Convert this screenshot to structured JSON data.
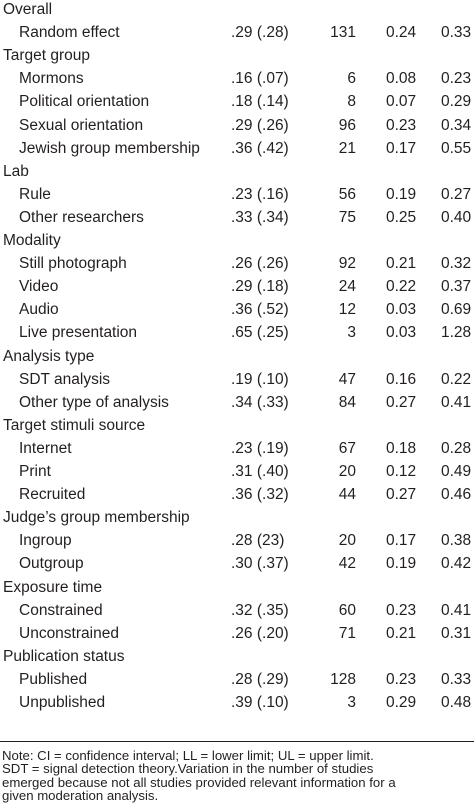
{
  "table": {
    "groups": [
      {
        "title": "Overall",
        "rows": [
          [
            "Random effect",
            ".29 (.28)",
            "131",
            "0.24",
            "0.33"
          ]
        ]
      },
      {
        "title": "Target group",
        "rows": [
          [
            "Mormons",
            ".16 (.07)",
            "6",
            "0.08",
            "0.23"
          ],
          [
            "Political orientation",
            ".18 (.14)",
            "8",
            "0.07",
            "0.29"
          ],
          [
            "Sexual orientation",
            ".29 (.26)",
            "96",
            "0.23",
            "0.34"
          ],
          [
            "Jewish group membership",
            ".36 (.42)",
            "21",
            "0.17",
            "0.55"
          ]
        ]
      },
      {
        "title": "Lab",
        "rows": [
          [
            "Rule",
            ".23 (.16)",
            "56",
            "0.19",
            "0.27"
          ],
          [
            "Other researchers",
            ".33 (.34)",
            "75",
            "0.25",
            "0.40"
          ]
        ]
      },
      {
        "title": "Modality",
        "rows": [
          [
            "Still photograph",
            ".26 (.26)",
            "92",
            "0.21",
            "0.32"
          ],
          [
            "Video",
            ".29 (.18)",
            "24",
            "0.22",
            "0.37"
          ],
          [
            "Audio",
            ".36 (.52)",
            "12",
            "0.03",
            "0.69"
          ],
          [
            "Live presentation",
            ".65 (.25)",
            "3",
            "0.03",
            "1.28"
          ]
        ]
      },
      {
        "title": "Analysis type",
        "rows": [
          [
            "SDT analysis",
            ".19 (.10)",
            "47",
            "0.16",
            "0.22"
          ],
          [
            "Other type of analysis",
            ".34 (.33)",
            "84",
            "0.27",
            "0.41"
          ]
        ]
      },
      {
        "title": "Target stimuli source",
        "rows": [
          [
            "Internet",
            ".23 (.19)",
            "67",
            "0.18",
            "0.28"
          ],
          [
            "Print",
            ".31 (.40)",
            "20",
            "0.12",
            "0.49"
          ],
          [
            "Recruited",
            ".36 (.32)",
            "44",
            "0.27",
            "0.46"
          ]
        ]
      },
      {
        "title": "Judge’s group membership",
        "rows": [
          [
            "Ingroup",
            ".28 (23)",
            "20",
            "0.17",
            "0.38"
          ],
          [
            "Outgroup",
            ".30 (.37)",
            "42",
            "0.19",
            "0.42"
          ]
        ]
      },
      {
        "title": "Exposure time",
        "rows": [
          [
            "Constrained",
            ".32 (.35)",
            "60",
            "0.23",
            "0.41"
          ],
          [
            "Unconstrained",
            ".26 (.20)",
            "71",
            "0.21",
            "0.31"
          ]
        ]
      },
      {
        "title": "Publication status",
        "rows": [
          [
            "Published",
            ".28 (.29)",
            "128",
            "0.23",
            "0.33"
          ],
          [
            "Unpublished",
            ".39 (.10)",
            "3",
            "0.29",
            "0.48"
          ]
        ]
      }
    ]
  },
  "note": {
    "lines": [
      "Note: CI = confidence interval; LL = lower limit; UL = upper limit.",
      "SDT = signal detection theory.Variation in the number of studies",
      "emerged because not all studies provided relevant information for a",
      "given moderation analysis."
    ]
  }
}
